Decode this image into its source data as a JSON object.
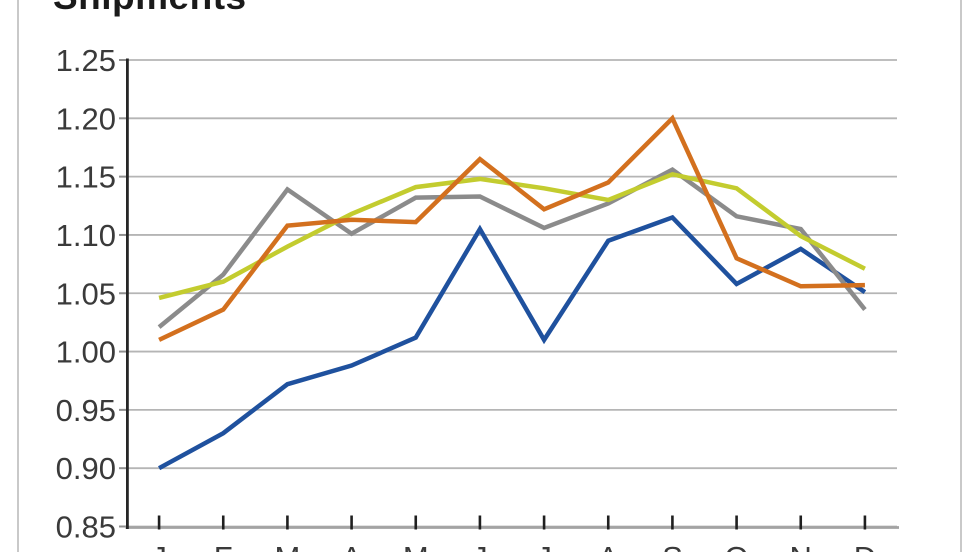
{
  "title": "Shipments",
  "axes": {
    "y_tick_labels": [
      "1.25",
      "1.20",
      "1.15",
      "1.10",
      "1.05",
      "1.00",
      "0.95",
      "0.90",
      "0.85"
    ],
    "x_tick_labels": [
      "J",
      "F",
      "M",
      "A",
      "M",
      "J",
      "J",
      "A",
      "S",
      "O",
      "N",
      "D"
    ]
  },
  "chart_data": {
    "type": "line",
    "title": "Shipments",
    "xlabel": "",
    "ylabel": "",
    "categories": [
      "J",
      "F",
      "M",
      "A",
      "M",
      "J",
      "J",
      "A",
      "S",
      "O",
      "N",
      "D"
    ],
    "series": [
      {
        "name": "blue",
        "color": "#1F519E",
        "values": [
          0.9,
          0.93,
          0.972,
          0.988,
          1.012,
          1.105,
          1.01,
          1.095,
          1.115,
          1.058,
          1.088,
          1.051
        ]
      },
      {
        "name": "gray",
        "color": "#8B8B8B",
        "values": [
          1.021,
          1.066,
          1.139,
          1.101,
          1.132,
          1.133,
          1.106,
          1.127,
          1.156,
          1.116,
          1.105,
          1.036
        ]
      },
      {
        "name": "yellow-green",
        "color": "#C3CC2F",
        "values": [
          1.046,
          1.06,
          1.09,
          1.118,
          1.141,
          1.148,
          1.14,
          1.13,
          1.152,
          1.14,
          1.099,
          1.071
        ]
      },
      {
        "name": "orange",
        "color": "#D3701E",
        "values": [
          1.01,
          1.036,
          1.108,
          1.113,
          1.111,
          1.165,
          1.122,
          1.145,
          1.2,
          1.08,
          1.056,
          1.057
        ]
      }
    ],
    "ylim": [
      0.85,
      1.25
    ],
    "ytick_step": 0.05,
    "grid": true,
    "legend": "none"
  },
  "colors": {
    "background": "#FFFFFF",
    "frame_border": "#C9C9C9",
    "title_text": "#1A1A1A",
    "label_text": "#3A3A3A",
    "gridline": "#B5B5B5",
    "y_axis_line": "#262626",
    "x_axis_line": "#A3A3A3",
    "x_tick": "#1F1F1F",
    "y_tick": "#8F8F8F"
  }
}
